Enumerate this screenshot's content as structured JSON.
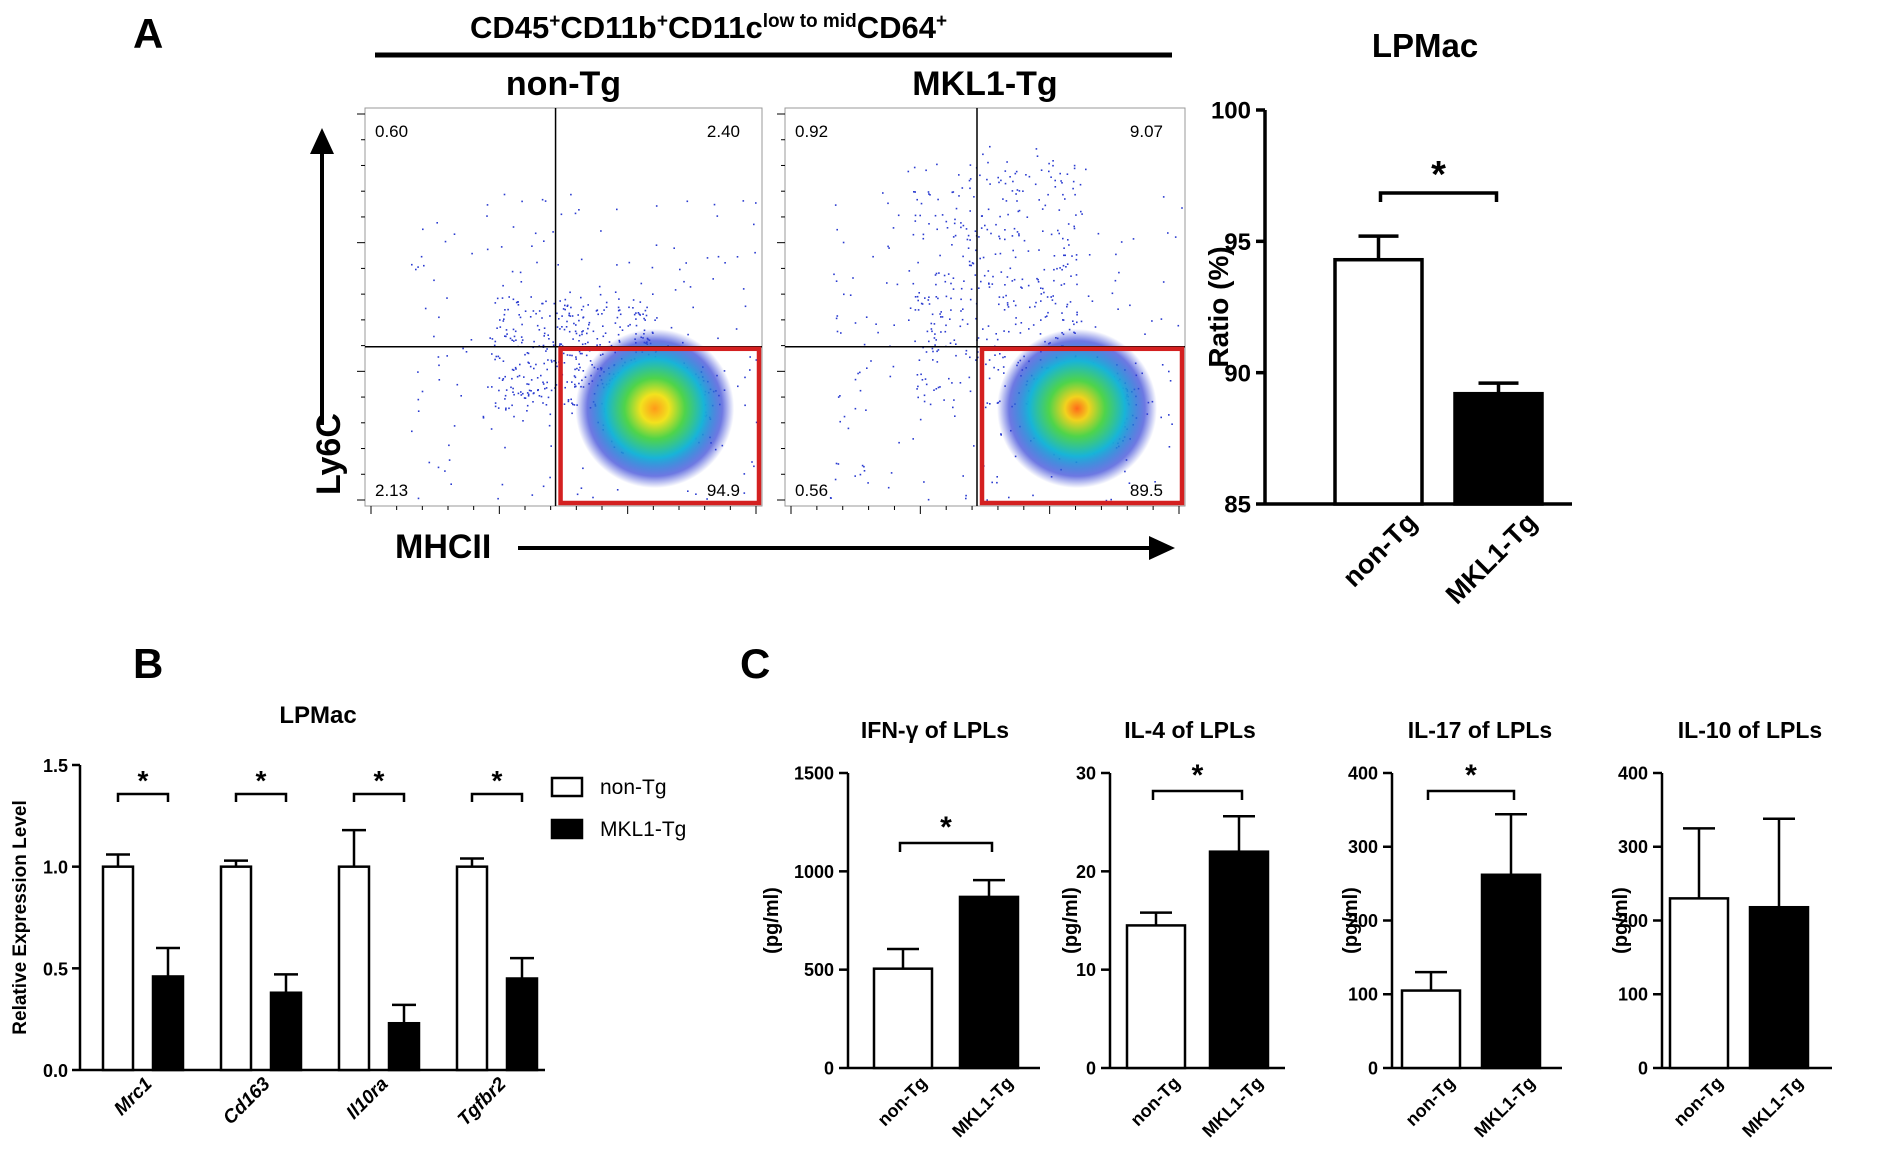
{
  "panel_a": {
    "letter": "A",
    "gate_label": {
      "base1": "CD45",
      "sup1": "+",
      "base2": "CD11b",
      "sup2": "+",
      "base3": "CD11c",
      "sup3": "low to mid",
      "base4": "CD64",
      "sup4": "+"
    },
    "flow_plots": [
      {
        "title": "non-Tg",
        "quadrants": {
          "ul": "0.60",
          "ur": "2.40",
          "ll": "2.13",
          "lr": "94.9"
        }
      },
      {
        "title": "MKL1-Tg",
        "quadrants": {
          "ul": "0.92",
          "ur": "9.07",
          "ll": "0.56",
          "lr": "89.5"
        }
      }
    ],
    "y_axis": "Ly6C",
    "x_axis": "MHCII",
    "gate_color": "#d42020"
  },
  "panel_b": {
    "letter": "B"
  },
  "panel_c": {
    "letter": "C"
  },
  "legend": {
    "open_label": "non-Tg",
    "filled_label": "MKL1-Tg"
  },
  "colors": {
    "open": "#ffffff",
    "filled": "#000000",
    "stroke": "#000000"
  },
  "chart_data": [
    {
      "id": "lpmac-ratio",
      "type": "bar",
      "title": "LPMac",
      "xlabel": "",
      "ylabel": "Ratio (%)",
      "ylim": [
        85,
        100
      ],
      "yticks": [
        85,
        90,
        95,
        100
      ],
      "categories": [
        "non-Tg",
        "MKL1-Tg"
      ],
      "values": [
        94.3,
        89.2
      ],
      "errors": [
        0.9,
        0.4
      ],
      "significance": [
        {
          "from": 0,
          "to": 1,
          "label": "*"
        }
      ]
    },
    {
      "id": "lpmac-expression",
      "type": "bar",
      "title": "LPMac",
      "ylabel": "Relative Expression Level",
      "ylim": [
        0,
        1.5
      ],
      "yticks": [
        "0.0",
        "0.5",
        "1.0",
        "1.5"
      ],
      "categories": [
        "Mrc1",
        "Cd163",
        "Il10ra",
        "Tgfbr2"
      ],
      "series": [
        {
          "name": "non-Tg",
          "values": [
            1.0,
            1.0,
            1.0,
            1.0
          ],
          "errors": [
            0.06,
            0.03,
            0.18,
            0.04
          ]
        },
        {
          "name": "MKL1-Tg",
          "values": [
            0.46,
            0.38,
            0.23,
            0.45
          ],
          "errors": [
            0.14,
            0.09,
            0.09,
            0.1
          ]
        }
      ],
      "significance_label": "*",
      "legend_position": "right"
    },
    {
      "id": "ifng",
      "type": "bar",
      "title": "IFN-γ of LPLs",
      "ylabel": "(pg/ml)",
      "ylim": [
        0,
        1500
      ],
      "yticks": [
        0,
        500,
        1000,
        1500
      ],
      "categories": [
        "non-Tg",
        "MKL1-Tg"
      ],
      "values": [
        505,
        870
      ],
      "errors": [
        100,
        85
      ],
      "significance": [
        {
          "from": 0,
          "to": 1,
          "label": "*"
        }
      ]
    },
    {
      "id": "il4",
      "type": "bar",
      "title": "IL-4 of LPLs",
      "ylabel": "(pg/ml)",
      "ylim": [
        0,
        30
      ],
      "yticks": [
        0,
        10,
        20,
        30
      ],
      "categories": [
        "non-Tg",
        "MKL1-Tg"
      ],
      "values": [
        14.5,
        22
      ],
      "errors": [
        1.3,
        3.6
      ],
      "significance": [
        {
          "from": 0,
          "to": 1,
          "label": "*"
        }
      ]
    },
    {
      "id": "il17",
      "type": "bar",
      "title": "IL-17 of LPLs",
      "ylabel": "(pg/ml)",
      "ylim": [
        0,
        400
      ],
      "yticks": [
        0,
        100,
        200,
        300,
        400
      ],
      "categories": [
        "non-Tg",
        "MKL1-Tg"
      ],
      "values": [
        105,
        262
      ],
      "errors": [
        25,
        82
      ],
      "significance": [
        {
          "from": 0,
          "to": 1,
          "label": "*"
        }
      ]
    },
    {
      "id": "il10",
      "type": "bar",
      "title": "IL-10 of LPLs",
      "ylabel": "(pg/ml)",
      "ylim": [
        0,
        400
      ],
      "yticks": [
        0,
        100,
        200,
        300,
        400
      ],
      "categories": [
        "non-Tg",
        "MKL1-Tg"
      ],
      "values": [
        230,
        218
      ],
      "errors": [
        95,
        120
      ],
      "significance": []
    }
  ]
}
